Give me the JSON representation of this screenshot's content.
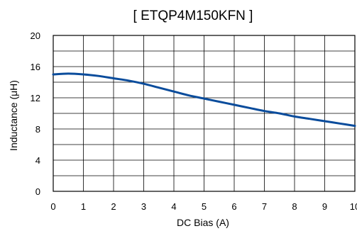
{
  "chart_data": {
    "type": "line",
    "title": "[ ETQP4M150KFN ]",
    "xlabel": "DC Bias (A)",
    "ylabel": "Inductance (μH)",
    "xlim": [
      0,
      10
    ],
    "ylim": [
      0,
      20
    ],
    "x_ticks": [
      "0",
      "1",
      "2",
      "3",
      "4",
      "5",
      "6",
      "7",
      "8",
      "9",
      "10"
    ],
    "y_ticks": [
      "0",
      "4",
      "8",
      "12",
      "16",
      "20"
    ],
    "grid": true,
    "legend": "none",
    "colors": {
      "line": "#0a4c9c",
      "grid": "#000000",
      "frame": "#000000"
    },
    "series": [
      {
        "x": [
          0,
          0.5,
          1,
          1.5,
          2,
          2.5,
          3,
          3.5,
          4,
          4.5,
          5,
          5.5,
          6,
          6.5,
          7,
          7.5,
          8,
          8.5,
          9,
          9.5,
          10
        ],
        "y": [
          15.0,
          15.1,
          15.0,
          14.8,
          14.5,
          14.2,
          13.8,
          13.3,
          12.8,
          12.3,
          11.9,
          11.5,
          11.1,
          10.7,
          10.3,
          10.0,
          9.6,
          9.3,
          9.0,
          8.7,
          8.4
        ]
      }
    ]
  }
}
